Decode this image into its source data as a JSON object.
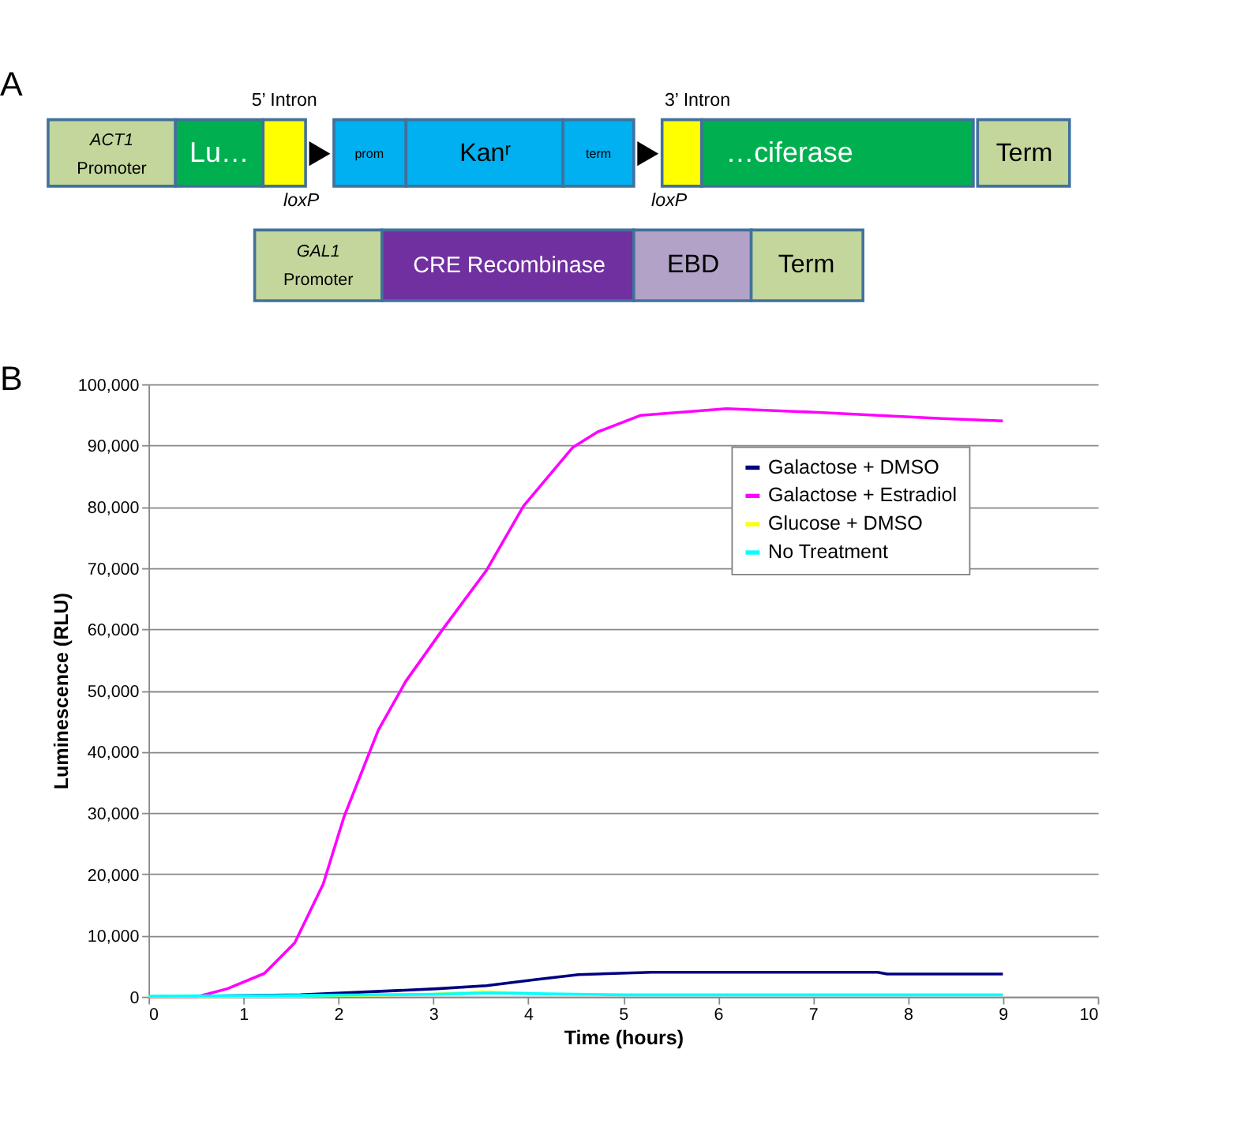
{
  "chart_data": [
    {
      "type": "other",
      "title": "A",
      "annotations": [
        "5’ Intron",
        "3’ Intron",
        "ACT1",
        "Promoter",
        "Lu…",
        "prom",
        "Kanʳ",
        "term",
        "…ciferase",
        "Term",
        "loxP",
        "loxP",
        "GAL1",
        "Promoter",
        "CRE Recombinase",
        "EBD",
        "Term"
      ]
    },
    {
      "type": "line",
      "title": "B",
      "xlabel": "Time (hours)",
      "ylabel": "Luminescence (RLU)",
      "xlim": [
        0,
        10
      ],
      "xticks": [
        0,
        1,
        2,
        3,
        4,
        5,
        6,
        7,
        8,
        9,
        10
      ],
      "ylim": [
        0,
        100000
      ],
      "yticks": [
        0,
        {
          "value": 10000,
          "label": "10,000"
        },
        {
          "value": 20000,
          "label": "20,000"
        },
        {
          "value": 30000,
          "label": "30,000"
        },
        {
          "value": 40000,
          "label": "40,000"
        },
        {
          "value": 50000,
          "label": "50,000"
        },
        {
          "value": 60000,
          "label": "60,000"
        },
        {
          "value": 70000,
          "label": "70,000"
        },
        {
          "value": 80000,
          "label": "80,000"
        },
        {
          "value": 90000,
          "label": "90,000"
        },
        {
          "value": 100000,
          "label": "100,000"
        }
      ],
      "grid": "y",
      "legend": "top right",
      "marker": "none",
      "line_style": "solid",
      "series": [
        {
          "name": "Galactose + DMSO",
          "color": "#000080",
          "x": [
            0,
            1.6,
            3.04,
            3.56,
            4.08,
            4.53,
            5.3,
            6.5,
            7.68,
            7.78,
            9
          ],
          "values": [
            0,
            300,
            1300,
            1800,
            2800,
            3600,
            4000,
            4000,
            4000,
            3700,
            3700
          ]
        },
        {
          "name": "Galactose + Estradiol",
          "color": "#ff00ff",
          "x": [
            0,
            0.51,
            0.83,
            1.22,
            1.54,
            1.84,
            2.06,
            2.42,
            2.71,
            3.1,
            3.56,
            3.95,
            4.47,
            4.73,
            5.18,
            6.09,
            7.06,
            8.36,
            9
          ],
          "values": [
            0,
            0,
            1300,
            3800,
            8800,
            18400,
            29400,
            43500,
            51500,
            60000,
            69600,
            80100,
            89700,
            92200,
            94900,
            96000,
            95400,
            94400,
            94000
          ]
        },
        {
          "name": "Glucose + DMSO",
          "color": "#ffff00",
          "x": [
            0,
            1.6,
            3.0,
            3.5,
            4.0
          ],
          "values": [
            0,
            100,
            400,
            800,
            600
          ]
        },
        {
          "name": "No Treatment",
          "color": "#00ffff",
          "x": [
            0,
            1.6,
            3.0,
            3.6,
            4.5,
            5.0,
            9
          ],
          "values": [
            100,
            200,
            400,
            600,
            400,
            300,
            300
          ]
        }
      ]
    }
  ]
}
